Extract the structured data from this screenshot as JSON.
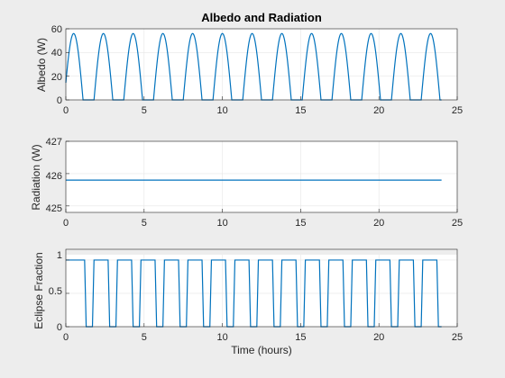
{
  "chart_data": [
    {
      "type": "line",
      "title": "Albedo and Radiation",
      "xlabel": "",
      "ylabel": "Albedo (W)",
      "xlim": [
        0,
        25
      ],
      "ylim": [
        0,
        60
      ],
      "xticks": [
        "0",
        "5",
        "10",
        "15",
        "20",
        "25"
      ],
      "yticks": [
        "0",
        "20",
        "40",
        "60"
      ],
      "grid": true,
      "color": "#0072BD",
      "series": [
        {
          "pulse_peak": 56,
          "pulse_width_hours": 1.2,
          "period_hours": 1.9,
          "first_peak_hours": 0.5,
          "x_end": 24
        }
      ]
    },
    {
      "type": "line",
      "title": "",
      "xlabel": "",
      "ylabel": "Radiation (W)",
      "xlim": [
        0,
        25
      ],
      "ylim": [
        424.8,
        427
      ],
      "xticks": [
        "0",
        "5",
        "10",
        "15",
        "20",
        "25"
      ],
      "yticks": [
        "425",
        "426",
        "427"
      ],
      "ytick_values": [
        425,
        426,
        427
      ],
      "grid": true,
      "color": "#0072BD",
      "series": [
        {
          "x": [
            0,
            24
          ],
          "y": [
            425.8,
            425.8
          ]
        }
      ]
    },
    {
      "type": "line",
      "title": "",
      "xlabel": "Time (hours)",
      "ylabel": "Eclipse Fraction",
      "xlim": [
        0,
        25
      ],
      "ylim": [
        0,
        1.08
      ],
      "xticks": [
        "0",
        "5",
        "10",
        "15",
        "20",
        "25"
      ],
      "yticks": [
        "0",
        "0.5",
        "1"
      ],
      "ytick_values": [
        0,
        0.5,
        1
      ],
      "grid": true,
      "color": "#0072BD",
      "series": [
        {
          "x": [
            0,
            1.2,
            1.3,
            1.7,
            1.8,
            2.7,
            2.8,
            3.2,
            3.3,
            4.2,
            4.3,
            4.7,
            4.8,
            5.7,
            5.8,
            6.2,
            6.3,
            7.2,
            7.3,
            7.7,
            7.8,
            8.7,
            8.8,
            9.2,
            9.3,
            10.2,
            10.3,
            10.7,
            10.8,
            11.7,
            11.8,
            12.2,
            12.3,
            13.2,
            13.3,
            13.7,
            13.8,
            14.7,
            14.8,
            15.2,
            15.3,
            16.2,
            16.3,
            16.7,
            16.8,
            17.7,
            17.8,
            18.2,
            18.3,
            19.2,
            19.3,
            19.7,
            19.8,
            20.7,
            20.8,
            21.2,
            21.3,
            22.2,
            22.3,
            22.7,
            22.8,
            23.7,
            23.8,
            24
          ],
          "y": [
            1,
            1,
            0,
            0,
            1,
            1,
            0,
            0,
            1,
            1,
            0,
            0,
            1,
            1,
            0,
            0,
            1,
            1,
            0,
            0,
            1,
            1,
            0,
            0,
            1,
            1,
            0,
            0,
            1,
            1,
            0,
            0,
            1,
            1,
            0,
            0,
            1,
            1,
            0,
            0,
            1,
            1,
            0,
            0,
            1,
            1,
            0,
            0,
            1,
            1,
            0,
            0,
            1,
            1,
            0,
            0,
            1,
            1,
            0,
            0,
            1,
            1,
            0,
            0
          ]
        }
      ]
    }
  ]
}
